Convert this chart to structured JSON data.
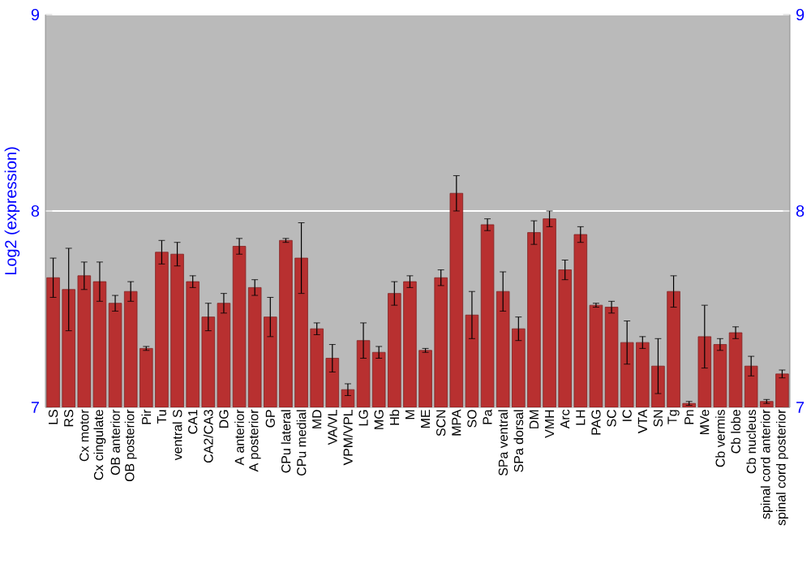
{
  "chart_data": {
    "type": "bar",
    "ylabel": "Log2 (expression)",
    "categories": [
      "LS",
      "RS",
      "Cx motor",
      "Cx cingulate",
      "OB anterior",
      "OB posterior",
      "Pir",
      "Tu",
      "ventral S",
      "CA1",
      "CA2/CA3",
      "DG",
      "A anterior",
      "A posterior",
      "GP",
      "CPu lateral",
      "CPu medial",
      "MD",
      "VA/VL",
      "VPM/VPL",
      "LG",
      "MG",
      "Hb",
      "M",
      "ME",
      "SCN",
      "MPA",
      "SO",
      "Pa",
      "SPa ventral",
      "SPa dorsal",
      "DM",
      "VMH",
      "Arc",
      "LH",
      "PAG",
      "SC",
      "IC",
      "VTA",
      "SN",
      "Tg",
      "Pn",
      "MVe",
      "Cb vermis",
      "Cb lobe",
      "Cb nucleus",
      "spinal cord anterior",
      "spinal cord posterior"
    ],
    "values": [
      7.66,
      7.6,
      7.67,
      7.64,
      7.53,
      7.59,
      7.3,
      7.79,
      7.78,
      7.64,
      7.46,
      7.53,
      7.82,
      7.61,
      7.46,
      7.85,
      7.76,
      7.4,
      7.25,
      7.09,
      7.34,
      7.28,
      7.58,
      7.64,
      7.29,
      7.66,
      8.09,
      7.47,
      7.93,
      7.59,
      7.4,
      7.89,
      7.96,
      7.7,
      7.88,
      7.52,
      7.51,
      7.33,
      7.33,
      7.21,
      7.59,
      7.02,
      7.36,
      7.32,
      7.38,
      7.21,
      7.03,
      7.17
    ],
    "errors": [
      0.1,
      0.21,
      0.07,
      0.1,
      0.04,
      0.05,
      0.01,
      0.06,
      0.06,
      0.03,
      0.07,
      0.05,
      0.04,
      0.04,
      0.1,
      0.01,
      0.18,
      0.03,
      0.07,
      0.03,
      0.09,
      0.03,
      0.06,
      0.03,
      0.01,
      0.04,
      0.09,
      0.12,
      0.03,
      0.1,
      0.06,
      0.06,
      0.04,
      0.05,
      0.04,
      0.01,
      0.03,
      0.11,
      0.03,
      0.14,
      0.08,
      0.01,
      0.16,
      0.03,
      0.03,
      0.05,
      0.01,
      0.02
    ],
    "color": "#b83030",
    "ylim": [
      7,
      9
    ],
    "yticks": [
      7,
      8,
      9
    ],
    "y2lim": [
      7,
      9
    ],
    "y2ticks": [
      7,
      8,
      9
    ],
    "grid": "y"
  }
}
